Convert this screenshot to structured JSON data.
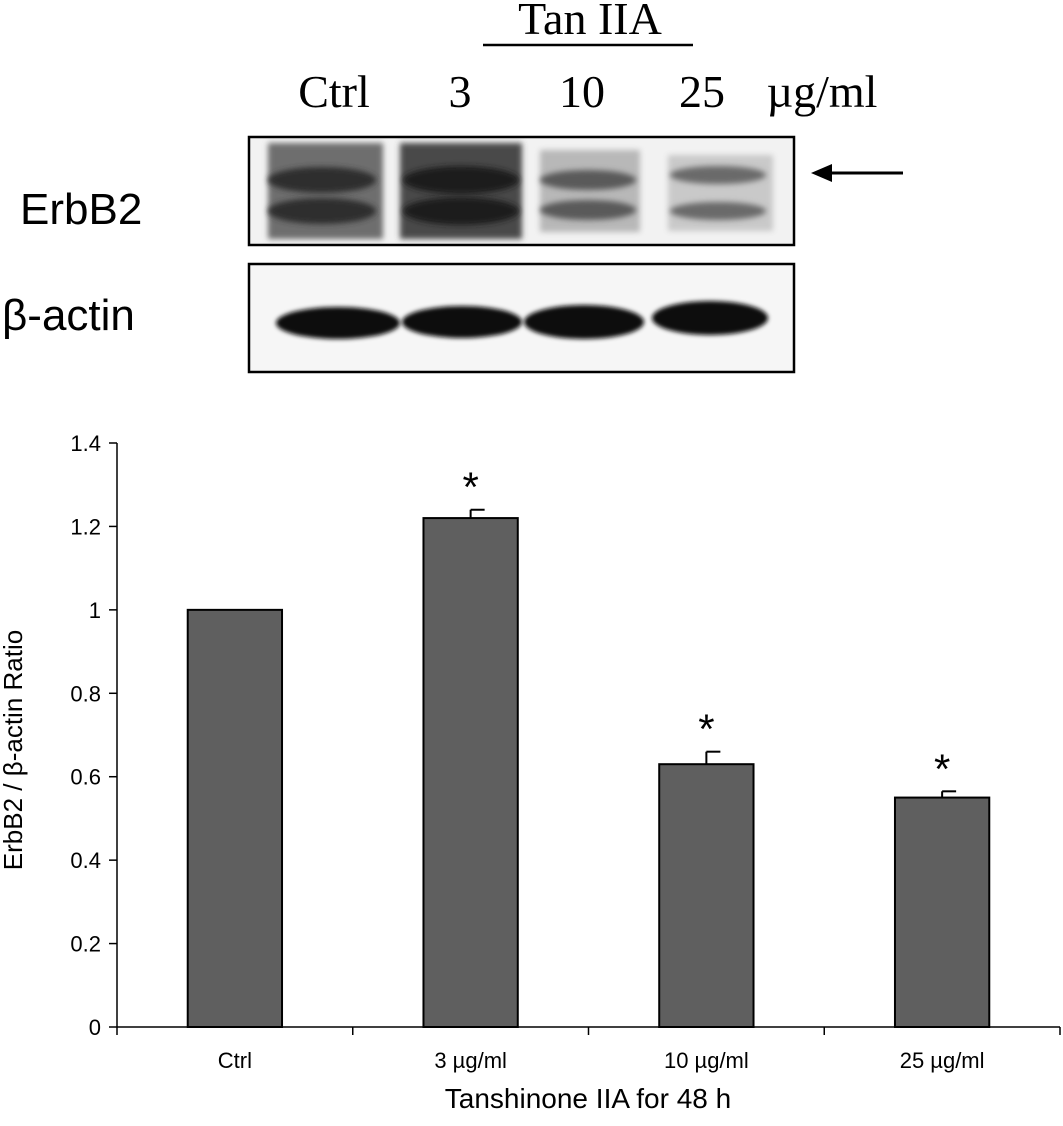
{
  "blot": {
    "treatment_label": "Tan IIA",
    "lane_labels": [
      "Ctrl",
      "3",
      "10",
      "25"
    ],
    "unit_label": "µg/ml",
    "row_labels": [
      "ErbB2",
      "β-actin"
    ]
  },
  "chart_data": {
    "type": "bar",
    "categories": [
      "Ctrl",
      "3 µg/ml",
      "10 µg/ml",
      "25 µg/ml"
    ],
    "values": [
      1.0,
      1.22,
      0.63,
      0.55
    ],
    "errors": [
      0,
      0.02,
      0.03,
      0.015
    ],
    "significance": [
      "",
      "*",
      "*",
      "*"
    ],
    "xlabel": "Tanshinone IIA for 48 h",
    "ylabel": "ErbB2 / β-actin Ratio",
    "ylim": [
      0,
      1.4
    ],
    "yticks": [
      "0",
      "0.2",
      "0.4",
      "0.6",
      "0.8",
      "1",
      "1.2",
      "1.4"
    ],
    "bar_color": "#5f5f5f",
    "grid": false,
    "legend": "none"
  }
}
